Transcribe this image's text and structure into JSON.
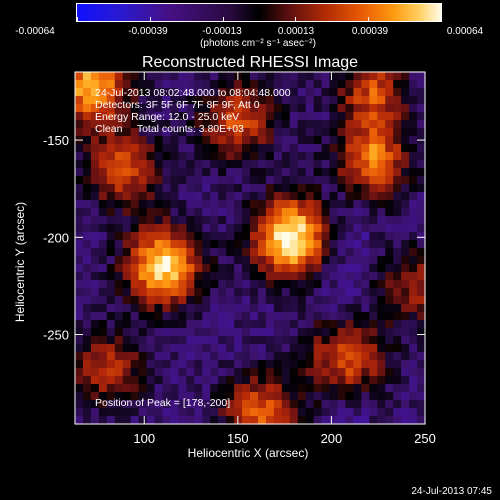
{
  "colorbar": {
    "ticks": [
      "-0.00064",
      "-0.00039",
      "-0.00013",
      "0.00013",
      "0.00039",
      "0.00064"
    ],
    "units": "(photons cm⁻² s⁻¹ asec⁻²)"
  },
  "chart_data": {
    "type": "heatmap",
    "title": "Reconstructed RHESSI Image",
    "xlabel": "Heliocentric X (arcsec)",
    "ylabel": "Heliocentric Y (arcsec)",
    "xlim": [
      63,
      250
    ],
    "ylim": [
      -296,
      -115
    ],
    "xticks": [
      100,
      150,
      200,
      250
    ],
    "yticks": [
      -150,
      -200,
      -250
    ],
    "peak": [
      178,
      -200
    ],
    "sources": [
      {
        "x": 178,
        "y": -200,
        "intensity": 1.0
      },
      {
        "x": 110,
        "y": -215,
        "intensity": 0.9
      },
      {
        "x": 72,
        "y": -122,
        "intensity": 0.8
      },
      {
        "x": 220,
        "y": -160,
        "intensity": 0.7
      },
      {
        "x": 88,
        "y": -165,
        "intensity": 0.55
      },
      {
        "x": 150,
        "y": -140,
        "intensity": 0.55
      },
      {
        "x": 208,
        "y": -262,
        "intensity": 0.65
      },
      {
        "x": 162,
        "y": -290,
        "intensity": 0.6
      },
      {
        "x": 220,
        "y": -125,
        "intensity": 0.55
      },
      {
        "x": 80,
        "y": -268,
        "intensity": 0.45
      },
      {
        "x": 245,
        "y": -225,
        "intensity": 0.4
      }
    ],
    "annotations": [
      "24-Jul-2013 08:02:48.000 to 08:04:48.000",
      "Detectors: 3F 5F 6F 7F 8F 9F, Att 0",
      "Energy Range: 12.0 - 25.0 keV",
      "Clean     Total counts: 3.80E+03"
    ],
    "peak_label": "Position of Peak = [178,-200]"
  },
  "footer": {
    "timestamp": "24-Jul-2013 07:45"
  }
}
